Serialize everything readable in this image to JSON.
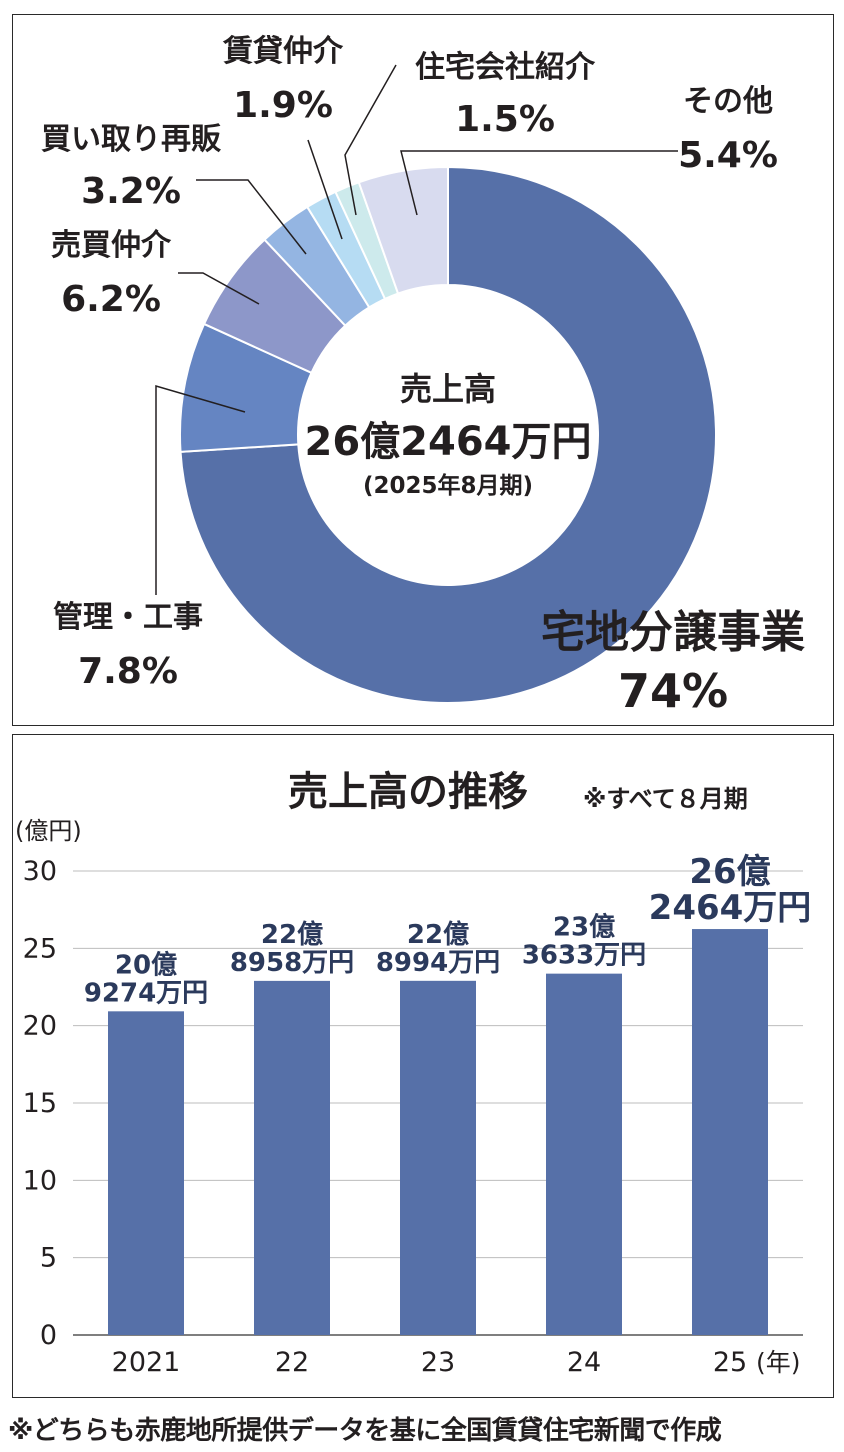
{
  "chart_data": [
    {
      "type": "pie",
      "center_label": {
        "title": "売上高",
        "value": "26億2464万円",
        "period": "(2025年8月期)"
      },
      "slices": [
        {
          "name": "宅地分譲事業",
          "percent_label": "74%",
          "value": 74.0,
          "color": "#5670a8"
        },
        {
          "name": "管理・工事",
          "percent_label": "7.8%",
          "value": 7.8,
          "color": "#6585c2"
        },
        {
          "name": "売買仲介",
          "percent_label": "6.2%",
          "value": 6.2,
          "color": "#8d97c9"
        },
        {
          "name": "買い取り再販",
          "percent_label": "3.2%",
          "value": 3.2,
          "color": "#94b5e2"
        },
        {
          "name": "賃貸仲介",
          "percent_label": "1.9%",
          "value": 1.9,
          "color": "#b6dcf3"
        },
        {
          "name": "住宅会社紹介",
          "percent_label": "1.5%",
          "value": 1.5,
          "color": "#cdeaec"
        },
        {
          "name": "その他",
          "percent_label": "5.4%",
          "value": 5.4,
          "color": "#d8dbef"
        }
      ]
    },
    {
      "type": "bar",
      "title": "売上高の推移",
      "note": "※すべて８月期",
      "ylabel": "(億円)",
      "ylim": [
        0,
        30
      ],
      "yticks": [
        0,
        5,
        10,
        15,
        20,
        25,
        30
      ],
      "grid": true,
      "categories": [
        "2021",
        "22",
        "23",
        "24",
        "25"
      ],
      "x_unit": "(年)",
      "values": [
        20.9274,
        22.8958,
        22.8994,
        23.3633,
        26.2464
      ],
      "data_labels": [
        [
          "20億",
          "9274万円"
        ],
        [
          "22億",
          "8958万円"
        ],
        [
          "22億",
          "8994万円"
        ],
        [
          "23億",
          "3633万円"
        ],
        [
          "26億",
          "2464万円"
        ]
      ],
      "bar_color": "#5670a8"
    }
  ],
  "footnote": "※どちらも赤鹿地所提供データを基に全国賃貸住宅新聞で作成"
}
